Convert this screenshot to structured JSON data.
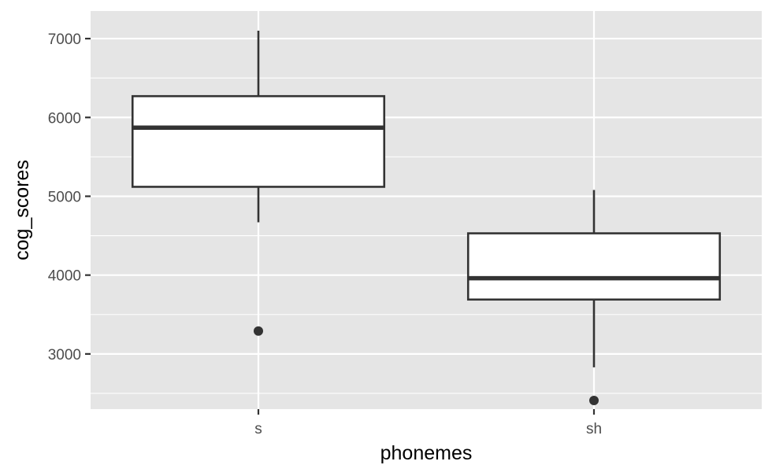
{
  "chart_data": {
    "type": "boxplot",
    "title": "",
    "xlabel": "phonemes",
    "ylabel": "cog_scores",
    "ylim": [
      2300,
      7350
    ],
    "y_ticks": [
      3000,
      4000,
      5000,
      6000,
      7000
    ],
    "y_tick_labels": [
      "3000",
      "4000",
      "5000",
      "6000",
      "7000"
    ],
    "grid": true,
    "categories": [
      "s",
      "sh"
    ],
    "boxes": [
      {
        "category": "s",
        "whisker_low": 4670,
        "q1": 5120,
        "median": 5870,
        "q3": 6270,
        "whisker_high": 7100,
        "outliers": [
          3290
        ]
      },
      {
        "category": "sh",
        "whisker_low": 2830,
        "q1": 3690,
        "median": 3960,
        "q3": 4530,
        "whisker_high": 5080,
        "outliers": [
          2410
        ]
      }
    ],
    "colors": {
      "panel_background": "#e5e5e5",
      "grid": "#ffffff",
      "box_fill": "#ffffff",
      "box_line": "#333333",
      "outlier": "#333333"
    }
  }
}
